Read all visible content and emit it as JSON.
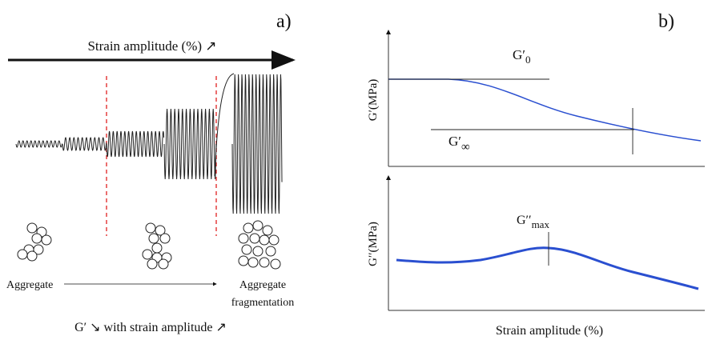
{
  "panel_a": {
    "label": "a)",
    "arrow_label": "Strain amplitude (%) ↗",
    "aggregate": "Aggregate",
    "fragmentation": [
      "Aggregate",
      "fragmentation"
    ],
    "caption": "G′ ↘ with strain amplitude ↗"
  },
  "panel_b": {
    "label": "b)",
    "top": {
      "y_label": "G′(MPa)",
      "g0": {
        "main": "G′",
        "sub": "0"
      },
      "ginf": {
        "main": "G′",
        "sub": "∞"
      }
    },
    "bottom": {
      "y_label": "G′′(MPa)",
      "gmax": {
        "main": "G′′",
        "sub": "max"
      }
    },
    "x_label": "Strain amplitude (%)"
  }
}
